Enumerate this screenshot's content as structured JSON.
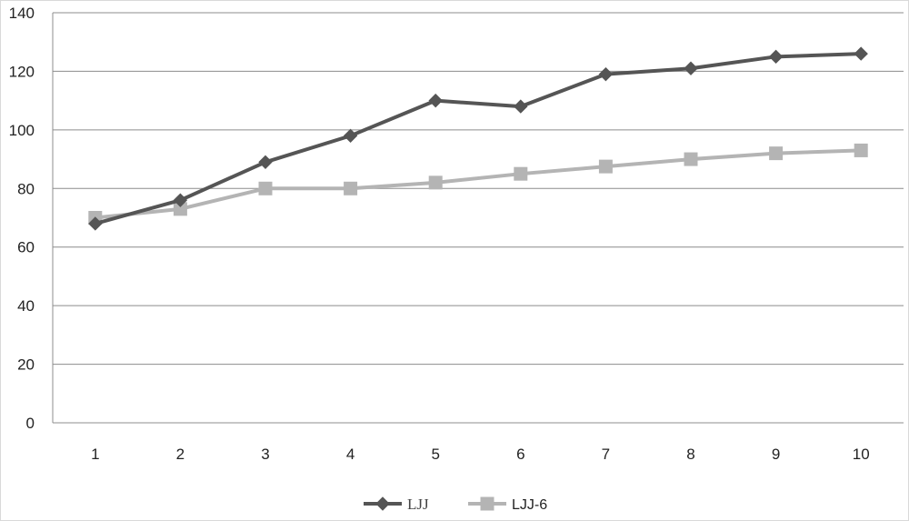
{
  "chart_data": {
    "type": "line",
    "title": "",
    "xlabel": "",
    "ylabel": "",
    "categories": [
      "1",
      "2",
      "3",
      "4",
      "5",
      "6",
      "7",
      "8",
      "9",
      "10"
    ],
    "y_ticks": [
      "0",
      "20",
      "40",
      "60",
      "80",
      "100",
      "120",
      "140"
    ],
    "ylim": [
      0,
      140
    ],
    "grid": "horizontal",
    "legend_position": "bottom",
    "series": [
      {
        "name": "LJJ",
        "color": "#555555",
        "marker": "diamond",
        "values": [
          68,
          76,
          89,
          98,
          110,
          108,
          119,
          121,
          125,
          126
        ]
      },
      {
        "name": "LJJ-6",
        "color": "#b4b4b4",
        "marker": "square",
        "values": [
          70,
          73,
          80,
          80,
          82,
          85,
          87.5,
          90,
          92,
          93
        ]
      }
    ]
  }
}
